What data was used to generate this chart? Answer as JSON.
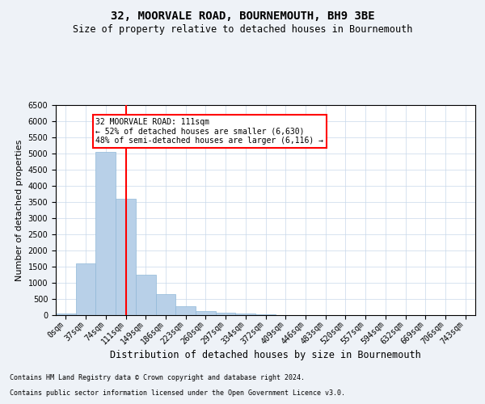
{
  "title": "32, MOORVALE ROAD, BOURNEMOUTH, BH9 3BE",
  "subtitle": "Size of property relative to detached houses in Bournemouth",
  "xlabel": "Distribution of detached houses by size in Bournemouth",
  "ylabel": "Number of detached properties",
  "categories": [
    "0sqm",
    "37sqm",
    "74sqm",
    "111sqm",
    "149sqm",
    "186sqm",
    "223sqm",
    "260sqm",
    "297sqm",
    "334sqm",
    "372sqm",
    "409sqm",
    "446sqm",
    "483sqm",
    "520sqm",
    "557sqm",
    "594sqm",
    "632sqm",
    "669sqm",
    "706sqm",
    "743sqm"
  ],
  "bar_values": [
    50,
    1600,
    5050,
    3600,
    1250,
    650,
    280,
    130,
    80,
    50,
    30,
    10,
    5,
    0,
    0,
    0,
    0,
    0,
    0,
    0,
    0
  ],
  "bar_color": "#b8d0e8",
  "bar_edge_color": "#90b8d8",
  "vline_x": 3,
  "vline_color": "red",
  "annotation_text": "32 MOORVALE ROAD: 111sqm\n← 52% of detached houses are smaller (6,630)\n48% of semi-detached houses are larger (6,116) →",
  "annotation_box_color": "white",
  "annotation_box_edge": "red",
  "ylim": [
    0,
    6500
  ],
  "yticks": [
    0,
    500,
    1000,
    1500,
    2000,
    2500,
    3000,
    3500,
    4000,
    4500,
    5000,
    5500,
    6000,
    6500
  ],
  "footer1": "Contains HM Land Registry data © Crown copyright and database right 2024.",
  "footer2": "Contains public sector information licensed under the Open Government Licence v3.0.",
  "bg_color": "#eef2f7",
  "plot_bg_color": "#ffffff",
  "grid_color": "#c8d8ea",
  "title_fontsize": 10,
  "subtitle_fontsize": 8.5,
  "tick_fontsize": 7,
  "ylabel_fontsize": 8,
  "xlabel_fontsize": 8.5,
  "annotation_fontsize": 7,
  "footer_fontsize": 6
}
